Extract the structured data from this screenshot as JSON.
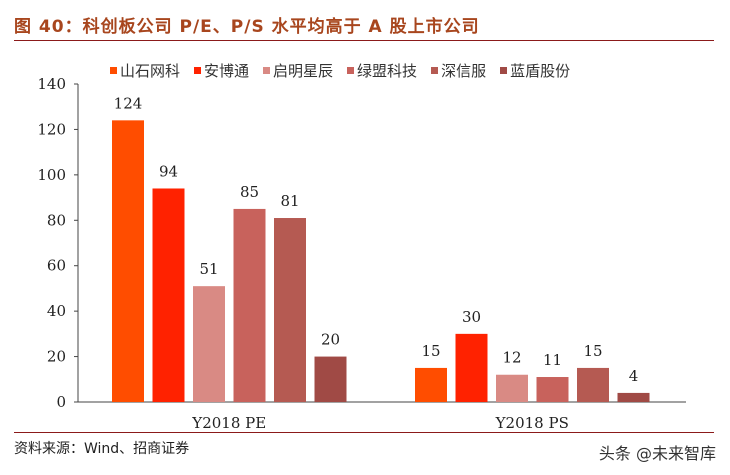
{
  "title": "图 40：科创板公司 P/E、P/S 水平均高于 A 股上市公司",
  "source": "资料来源：Wind、招商证券",
  "watermark": "头条 @未来智库",
  "chart_data": {
    "type": "bar",
    "categories": [
      "Y2018 PE",
      "Y2018 PS"
    ],
    "series": [
      {
        "name": "山石网科",
        "values": [
          124,
          15
        ],
        "color": "#FF4D00"
      },
      {
        "name": "安博通",
        "values": [
          94,
          30
        ],
        "color": "#FF2200"
      },
      {
        "name": "启明星辰",
        "values": [
          51,
          12
        ],
        "color": "#D98A84"
      },
      {
        "name": "绿盟科技",
        "values": [
          85,
          11
        ],
        "color": "#C8625C"
      },
      {
        "name": "深信服",
        "values": [
          81,
          15
        ],
        "color": "#B55A52"
      },
      {
        "name": "蓝盾股份",
        "values": [
          20,
          4
        ],
        "color": "#A04A45"
      }
    ],
    "ylim": [
      0,
      140
    ],
    "yticks": [
      0,
      20,
      40,
      60,
      80,
      100,
      120,
      140
    ],
    "grid": false,
    "legend": "top"
  }
}
